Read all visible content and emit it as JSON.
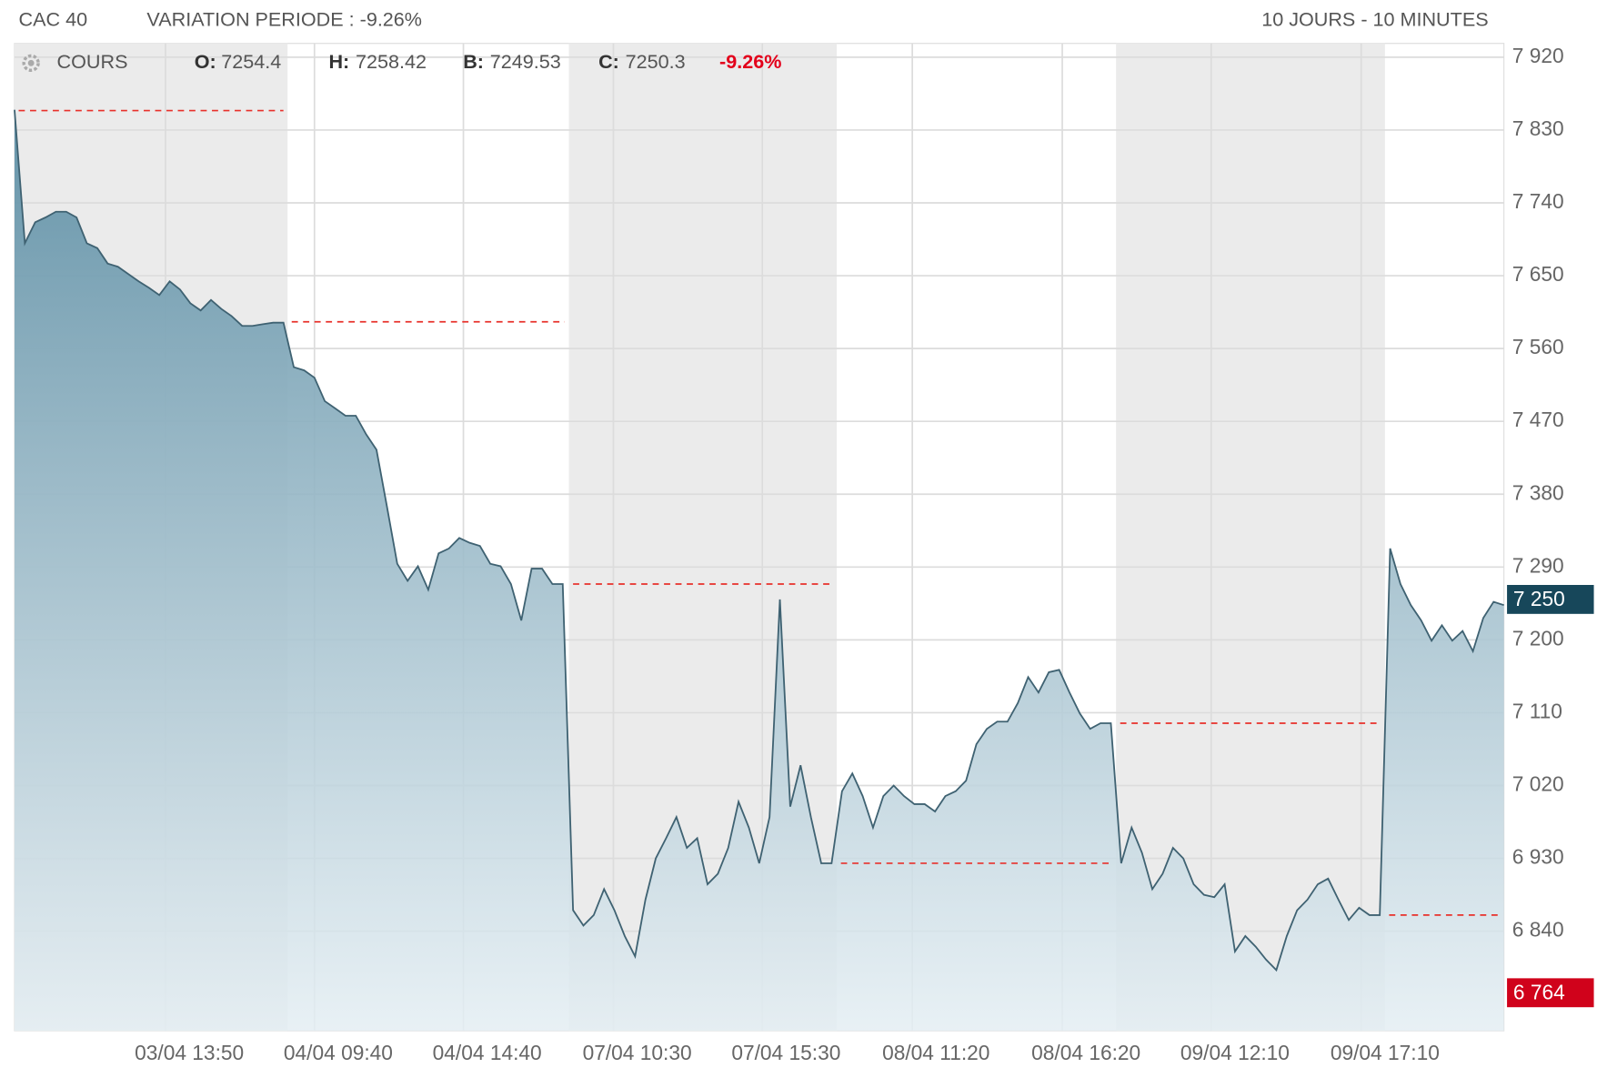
{
  "chart_data": {
    "type": "area",
    "title": "CAC 40",
    "subtitle": "VARIATION PERIODE : -9.26%",
    "period": "10 JOURS - 10 MINUTES",
    "legend": {
      "name": "COURS",
      "ohlc": [
        {
          "label": "O:",
          "value": 7254.4
        },
        {
          "label": "H:",
          "value": 7258.42
        },
        {
          "label": "B:",
          "value": 7249.53
        },
        {
          "label": "C:",
          "value": 7250.3
        }
      ],
      "change": "-9.26%"
    },
    "series": [
      {
        "name": "COURS",
        "color": "#3f6272",
        "values": [
          7855,
          7690,
          7716,
          7722,
          7729,
          7729,
          7722,
          7690,
          7684,
          7665,
          7661,
          7652,
          7643,
          7635,
          7626,
          7643,
          7633,
          7616,
          7607,
          7620,
          7609,
          7600,
          7588,
          7588,
          7590,
          7592,
          7592,
          7537,
          7533,
          7524,
          7495,
          7486,
          7477,
          7477,
          7454,
          7435,
          7365,
          7294,
          7273,
          7291,
          7262,
          7307,
          7313,
          7326,
          7320,
          7316,
          7294,
          7291,
          7269,
          7224,
          7288,
          7288,
          7269,
          7269,
          6866,
          6847,
          6860,
          6892,
          6866,
          6834,
          6809,
          6879,
          6930,
          6955,
          6981,
          6943,
          6955,
          6898,
          6911,
          6943,
          7000,
          6968,
          6924,
          6981,
          7250,
          6994,
          7045,
          6981,
          6924,
          6924,
          7013,
          7035,
          7007,
          6968,
          7007,
          7020,
          7007,
          6997,
          6997,
          6988,
          7007,
          7013,
          7026,
          7071,
          7090,
          7099,
          7099,
          7122,
          7154,
          7135,
          7160,
          7163,
          7135,
          7109,
          7090,
          7097,
          7097,
          6924,
          6968,
          6937,
          6892,
          6911,
          6943,
          6930,
          6898,
          6885,
          6882,
          6898,
          6815,
          6834,
          6821,
          6805,
          6792,
          6834,
          6866,
          6879,
          6898,
          6905,
          6879,
          6854,
          6869,
          6860,
          6860,
          7313,
          7269,
          7243,
          7224,
          7199,
          7218,
          7199,
          7211,
          7186,
          7227,
          7247,
          7243
        ]
      }
    ],
    "sessions": [
      {
        "start": 0,
        "end": 26.4,
        "shaded": true,
        "prev_close": 7854
      },
      {
        "start": 26.4,
        "end": 53.6,
        "shaded": false,
        "prev_close": 7593
      },
      {
        "start": 53.6,
        "end": 79.5,
        "shaded": true,
        "prev_close": 7269
      },
      {
        "start": 79.5,
        "end": 106.5,
        "shaded": false,
        "prev_close": 6924
      },
      {
        "start": 106.5,
        "end": 132.5,
        "shaded": true,
        "prev_close": 7097
      },
      {
        "start": 132.5,
        "end": 144,
        "shaded": false,
        "prev_close": 6860
      }
    ],
    "xlim": [
      0,
      144
    ],
    "xticks": [
      {
        "value": 14.6,
        "label": "03/04 13:50"
      },
      {
        "value": 29,
        "label": "04/04 09:40"
      },
      {
        "value": 43.4,
        "label": "04/04 14:40"
      },
      {
        "value": 57.9,
        "label": "07/04 10:30"
      },
      {
        "value": 72.3,
        "label": "07/04 15:30"
      },
      {
        "value": 86.8,
        "label": "08/04 11:20"
      },
      {
        "value": 101.3,
        "label": "08/04 16:20"
      },
      {
        "value": 115.7,
        "label": "09/04 12:10"
      },
      {
        "value": 130.2,
        "label": "09/04 17:10"
      }
    ],
    "ylim": [
      6717,
      7937
    ],
    "yticks": [
      {
        "value": 6840,
        "label": "6 840"
      },
      {
        "value": 6930,
        "label": "6 930"
      },
      {
        "value": 7020,
        "label": "7 020"
      },
      {
        "value": 7110,
        "label": "7 110"
      },
      {
        "value": 7200,
        "label": "7 200"
      },
      {
        "value": 7290,
        "label": "7 290"
      },
      {
        "value": 7380,
        "label": "7 380"
      },
      {
        "value": 7470,
        "label": "7 470"
      },
      {
        "value": 7560,
        "label": "7 560"
      },
      {
        "value": 7650,
        "label": "7 650"
      },
      {
        "value": 7740,
        "label": "7 740"
      },
      {
        "value": 7830,
        "label": "7 830"
      },
      {
        "value": 7920,
        "label": "7 920"
      }
    ],
    "last_price": {
      "value": 7250,
      "label": "7 250",
      "color": "#17475a"
    },
    "low_price": {
      "value": 6764,
      "label": "6 764",
      "color": "#d0021b"
    },
    "prev_close_color": "#e8302a",
    "grid": true
  }
}
